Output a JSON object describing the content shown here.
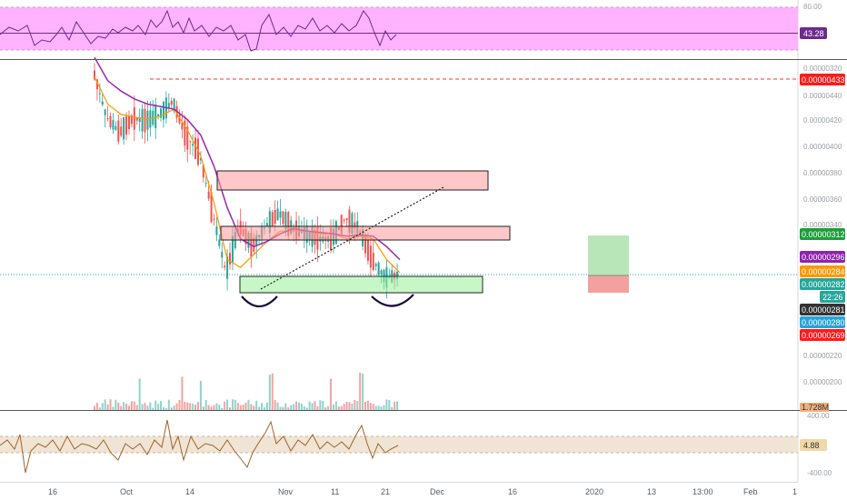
{
  "chart_data": {
    "type": "candlestick",
    "panels": [
      {
        "name": "rsi-pane",
        "y_axis_labels": [
          "80.00"
        ],
        "current_value": "43.28",
        "ylim": [
          20,
          80
        ],
        "band": [
          30,
          70
        ],
        "reference_line": 45,
        "colors": {
          "band": "#ffb3ff",
          "line": "#6e2a8c"
        }
      },
      {
        "name": "price-pane",
        "ylim": [
          1.8e-06,
          4.5e-06
        ],
        "y_axis_labels": [
          "0.00000440",
          "0.00000420",
          "0.00000400",
          "0.00000380",
          "0.00000360",
          "0.00000340",
          "0.00000320",
          "0.00000220",
          "0.00000200"
        ],
        "price_tags": [
          {
            "label": "0.00000433",
            "value": 4.33e-06,
            "bg": "#ff1a1a",
            "color": "#ffffff"
          },
          {
            "label": "0.00000312",
            "value": 3.12e-06,
            "bg": "#1e9e3a",
            "color": "#ffffff"
          },
          {
            "label": "0.00000296",
            "value": 2.96e-06,
            "bg": "#8e24aa",
            "color": "#ffffff"
          },
          {
            "label": "0.00000284",
            "value": 2.84e-06,
            "bg": "#ff9800",
            "color": "#ffffff"
          },
          {
            "label": "0.00000282",
            "value": 2.82e-06,
            "bg": "#26a69a",
            "color": "#ffffff"
          },
          {
            "label": "22:26",
            "value": 2.73e-06,
            "bg": "#26a69a",
            "color": "#ffffff"
          },
          {
            "label": "0.00000281",
            "value": 2.81e-06,
            "bg": "#333333",
            "color": "#ffffff"
          },
          {
            "label": "0.00000280",
            "value": 2.8e-06,
            "bg": "#29a3d9",
            "color": "#ffffff"
          },
          {
            "label": "0.00000269",
            "value": 2.69e-06,
            "bg": "#ff1a1a",
            "color": "#ffffff"
          }
        ],
        "volume_label": "1.728M",
        "resistance_zones": [
          [
            3.48e-06,
            3.62e-06
          ],
          [
            3.11e-06,
            3.21e-06
          ]
        ],
        "support_zone": [
          2.7e-06,
          2.83e-06
        ],
        "long_position": {
          "entry": 2.84e-06,
          "target": 3.14e-06,
          "stop": 2.71e-06
        },
        "horizontal_line": 4.33e-06,
        "trendline": [
          [
            "Sep 27",
            2.73e-06
          ],
          [
            "Dec 2",
            3.49e-06
          ]
        ],
        "moving_averages": [
          {
            "name": "EMA",
            "color": "#ff9800",
            "values": [
              4.37e-06,
              4.16e-06,
              4.08e-06,
              4.06e-06,
              4.04e-06,
              4.07e-06,
              4.12e-06,
              3.96e-06,
              3.76e-06,
              3.4e-06,
              2.96e-06,
              2.9e-06,
              3e-06,
              3.1e-06,
              3.18e-06,
              3.18e-06,
              3.18e-06,
              3.16e-06,
              3.16e-06,
              3.12e-06,
              3.14e-06,
              3.12e-06,
              2.96e-06,
              2.86e-06
            ]
          },
          {
            "name": "SMA",
            "color": "#9c27b0",
            "values": [
              4.52e-06,
              4.34e-06,
              4.26e-06,
              4.2e-06,
              4.16e-06,
              4.14e-06,
              4.12e-06,
              4.04e-06,
              3.92e-06,
              3.68e-06,
              3.36e-06,
              3.12e-06,
              3.06e-06,
              3.1e-06,
              3.16e-06,
              3.2e-06,
              3.18e-06,
              3.17e-06,
              3.16e-06,
              3.14e-06,
              3.15e-06,
              3.14e-06,
              3.06e-06,
              2.96e-06
            ]
          }
        ],
        "series": [
          {
            "name": "price",
            "values": [
              4.42e-06,
              4.06e-06,
              3.94e-06,
              4.05e-06,
              4.03e-06,
              4.08e-06,
              4.18e-06,
              3.91e-06,
              3.78e-06,
              3.32e-06,
              2.86e-06,
              3.22e-06,
              3.06e-06,
              3.22e-06,
              3.32e-06,
              3.2e-06,
              3.16e-06,
              3.12e-06,
              3.12e-06,
              3.28e-06,
              3.2e-06,
              2.96e-06,
              2.82e-06,
              2.84e-06
            ]
          }
        ]
      },
      {
        "name": "oscillator-pane",
        "y_axis_labels": [
          "400.00",
          "-400.00"
        ],
        "current_value": "4.88",
        "ylim": [
          -450,
          450
        ],
        "band": [
          -100,
          100
        ],
        "colors": {
          "band": "#f0e4d4",
          "line": "#a0642a"
        }
      }
    ],
    "x_tick_labels": [
      "16",
      "Oct",
      "14",
      "Nov",
      "11",
      "21",
      "Dec",
      "16",
      "2020",
      "13",
      "13:00",
      "Feb",
      "1"
    ]
  }
}
